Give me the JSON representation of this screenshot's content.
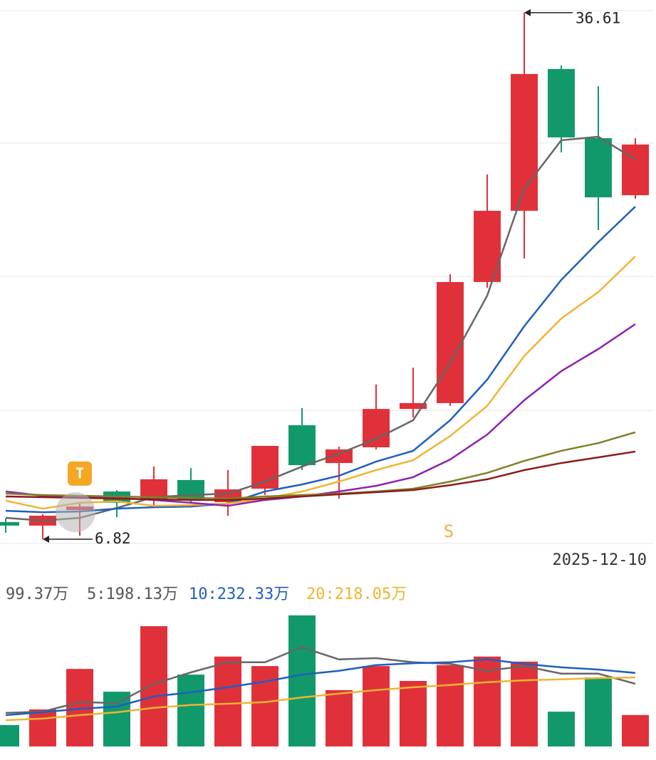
{
  "chart_data": [
    {
      "type": "candlestick",
      "categories": [
        null,
        null,
        null,
        null,
        null,
        null,
        null,
        null,
        null,
        null,
        null,
        null,
        null,
        null,
        null,
        null,
        null,
        "2025-12-10"
      ],
      "open": [
        7.79,
        7.59,
        8.47,
        9.52,
        9.04,
        10.17,
        8.92,
        9.68,
        13.27,
        11.13,
        12.02,
        14.19,
        14.52,
        21.37,
        25.4,
        33.42,
        29.51,
        26.28
      ],
      "high": [
        7.99,
        8.23,
        8.92,
        9.6,
        10.93,
        10.85,
        10.73,
        12.1,
        14.24,
        12.06,
        15.57,
        16.53,
        21.81,
        27.45,
        36.61,
        33.62,
        32.45,
        29.51
      ],
      "low": [
        7.18,
        6.82,
        7.02,
        8.07,
        8.63,
        8.92,
        8.15,
        9.32,
        10.73,
        9.12,
        11.9,
        13.71,
        14.36,
        21.05,
        22.7,
        28.7,
        24.31,
        26.08
      ],
      "close": [
        7.59,
        8.15,
        8.67,
        8.88,
        10.21,
        9.04,
        9.64,
        12.1,
        11.01,
        11.9,
        14.19,
        14.52,
        21.37,
        25.4,
        33.14,
        29.55,
        26.16,
        29.15
      ],
      "up_color": "#e0313a",
      "down_color": "#12996b",
      "ylim": [
        6.58,
        36.72
      ],
      "yticks": [
        6.58,
        14.11,
        21.69,
        29.23,
        36.72
      ],
      "grid": true,
      "lines": [
        {
          "color": "#666666",
          "values": [
            8.03,
            7.87,
            8.03,
            8.59,
            9.2,
            9.32,
            9.4,
            10.08,
            10.93,
            11.66,
            12.5,
            13.55,
            16.77,
            20.6,
            26.65,
            29.39,
            29.59,
            28.3
          ]
        },
        {
          "color": "#1f5fbf",
          "values": [
            8.43,
            8.35,
            8.39,
            8.55,
            8.63,
            8.67,
            8.84,
            9.52,
            9.92,
            10.41,
            11.21,
            11.82,
            13.55,
            15.85,
            18.87,
            21.49,
            23.63,
            25.64
          ]
        },
        {
          "color": "#efb431",
          "values": [
            9.0,
            8.55,
            8.88,
            8.96,
            8.71,
            8.75,
            8.84,
            9.12,
            9.52,
            10.08,
            10.73,
            11.29,
            12.66,
            14.36,
            17.18,
            19.31,
            20.8,
            22.82
          ]
        },
        {
          "color": "#8e22b0",
          "values": [
            9.52,
            9.28,
            9.24,
            9.16,
            9.04,
            8.88,
            8.71,
            9.04,
            9.24,
            9.52,
            9.84,
            10.33,
            11.33,
            12.74,
            14.68,
            16.33,
            17.58,
            18.99
          ]
        },
        {
          "color": "#7f8024",
          "values": [
            9.4,
            9.32,
            9.28,
            9.24,
            9.2,
            9.16,
            9.12,
            9.24,
            9.32,
            9.4,
            9.52,
            9.68,
            10.08,
            10.57,
            11.25,
            11.82,
            12.26,
            12.87
          ]
        },
        {
          "color": "#8b1c1c",
          "values": [
            9.24,
            9.2,
            9.16,
            9.12,
            9.08,
            9.04,
            9.04,
            9.12,
            9.24,
            9.36,
            9.48,
            9.6,
            9.88,
            10.21,
            10.73,
            11.13,
            11.45,
            11.78
          ]
        }
      ],
      "markers": [
        {
          "text": "T",
          "category_index": 2,
          "color": "#f5a623"
        },
        {
          "text": "S",
          "category_index": 12,
          "color": "#f0b040"
        }
      ]
    },
    {
      "type": "bar",
      "values": [
        67.5,
        117,
        245,
        173,
        380,
        227,
        284,
        254,
        414,
        178,
        254,
        207,
        257,
        284,
        268,
        110,
        218,
        99.37
      ],
      "colors": [
        "#12996b",
        "#e0313a",
        "#e0313a",
        "#12996b",
        "#e0313a",
        "#12996b",
        "#e0313a",
        "#e0313a",
        "#12996b",
        "#e0313a",
        "#e0313a",
        "#e0313a",
        "#e0313a",
        "#e0313a",
        "#e0313a",
        "#12996b",
        "#12996b",
        "#e0313a"
      ],
      "ylim": [
        0,
        427.5
      ],
      "lines": [
        {
          "color": "#666666",
          "values": [
            106,
            110,
            140,
            137,
            198,
            234,
            266,
            266,
            313,
            275,
            279,
            266,
            261,
            239,
            254,
            230,
            230,
            198.13
          ]
        },
        {
          "color": "#1f5fbf",
          "values": [
            99,
            108,
            119,
            126,
            158,
            171,
            187,
            205,
            227,
            239,
            257,
            263,
            266,
            275,
            261,
            250,
            243,
            232.33
          ]
        },
        {
          "color": "#efb431",
          "values": [
            83,
            88,
            99,
            108,
            122,
            131,
            135,
            140,
            155,
            167,
            178,
            187,
            194,
            203,
            209,
            212,
            216,
            218.05
          ]
        }
      ],
      "legend": [
        {
          "text": "99.37万",
          "color": "#555555"
        },
        {
          "text": "5:198.13万",
          "color": "#555555"
        },
        {
          "text": "10:232.33万",
          "color": "#1f5fbf"
        },
        {
          "text": "20:218.05万",
          "color": "#efb431"
        }
      ]
    }
  ]
}
